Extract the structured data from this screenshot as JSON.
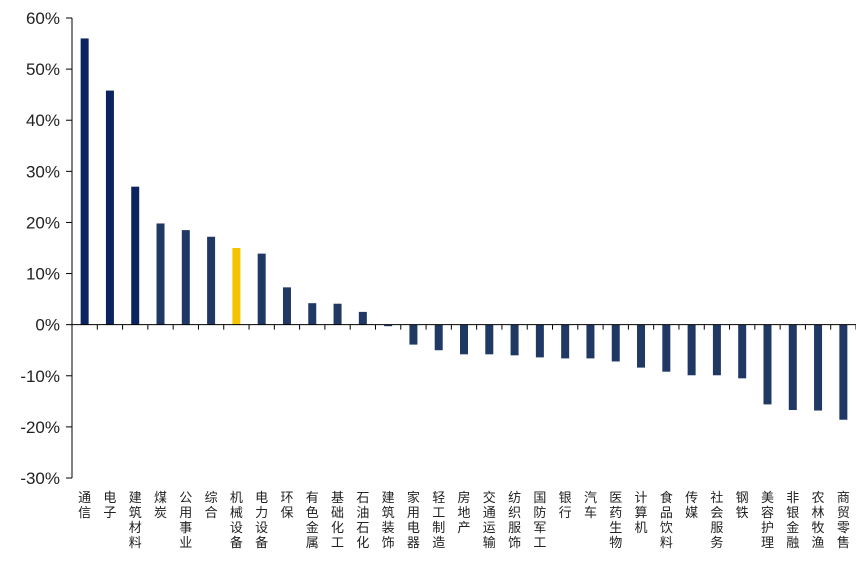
{
  "chart_data": {
    "type": "bar",
    "title": "",
    "xlabel": "",
    "ylabel": "",
    "ylim": [
      -30,
      60
    ],
    "yticks": [
      "60%",
      "50%",
      "40%",
      "30%",
      "20%",
      "10%",
      "0%",
      "-10%",
      "-20%",
      "-30%"
    ],
    "ytick_values": [
      60,
      50,
      40,
      30,
      20,
      10,
      0,
      -10,
      -20,
      -30
    ],
    "categories": [
      "通信",
      "电子",
      "建筑材料",
      "煤炭",
      "公用事业",
      "综合",
      "机械设备",
      "电力设备",
      "环保",
      "有色金属",
      "基础化工",
      "石油石化",
      "建筑装饰",
      "家用电器",
      "轻工制造",
      "房地产",
      "交通运输",
      "纺织服饰",
      "国防军工",
      "银行",
      "汽车",
      "医药生物",
      "计算机",
      "食品饮料",
      "传媒",
      "社会服务",
      "钢铁",
      "美容护理",
      "非银金融",
      "农林牧渔",
      "商贸零售"
    ],
    "values": [
      56.0,
      45.8,
      27.0,
      19.8,
      18.5,
      17.2,
      15.0,
      13.9,
      7.3,
      4.2,
      4.1,
      2.5,
      -0.3,
      -3.9,
      -5.0,
      -5.8,
      -5.8,
      -6.0,
      -6.4,
      -6.6,
      -6.6,
      -7.2,
      -8.4,
      -9.2,
      -9.9,
      -9.9,
      -10.5,
      -15.6,
      -16.7,
      -16.8,
      -18.6
    ],
    "highlight_category": "机械设备",
    "colors": {
      "default": "#1F3864",
      "top3": "#0B2461",
      "highlight": "#F5C400",
      "axis": "#000000",
      "text": "#222222"
    },
    "grid": false,
    "legend": "none"
  }
}
